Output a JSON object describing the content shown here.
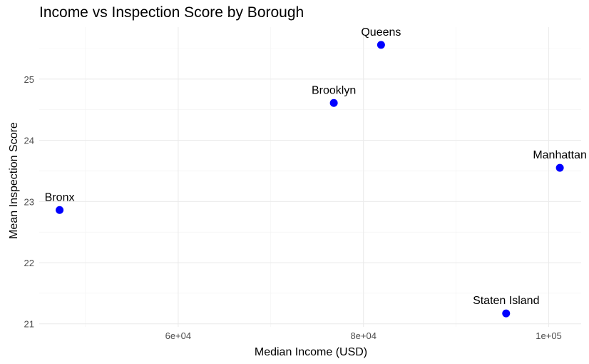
{
  "chart_data": {
    "type": "scatter",
    "title": "Income vs Inspection Score by Borough",
    "xlabel": "Median Income (USD)",
    "ylabel": "Mean Inspection Score",
    "xlim": [
      45000,
      103500
    ],
    "ylim": [
      20.95,
      25.85
    ],
    "x_ticks": [
      60000,
      80000,
      100000
    ],
    "x_tick_labels": [
      "6e+04",
      "8e+04",
      "1e+05"
    ],
    "x_minor_ticks": [
      50000,
      70000,
      90000
    ],
    "y_ticks": [
      21,
      22,
      23,
      24,
      25
    ],
    "y_tick_labels": [
      "21",
      "22",
      "23",
      "24",
      "25"
    ],
    "y_minor_ticks": [
      21.5,
      22.5,
      23.5,
      24.5,
      25.5
    ],
    "grid": true,
    "point_color": "#0000ff",
    "points": [
      {
        "label": "Bronx",
        "x": 47200,
        "y": 22.86
      },
      {
        "label": "Brooklyn",
        "x": 76800,
        "y": 24.61
      },
      {
        "label": "Queens",
        "x": 81900,
        "y": 25.56
      },
      {
        "label": "Manhattan",
        "x": 101200,
        "y": 23.55
      },
      {
        "label": "Staten Island",
        "x": 95400,
        "y": 21.17
      }
    ]
  }
}
